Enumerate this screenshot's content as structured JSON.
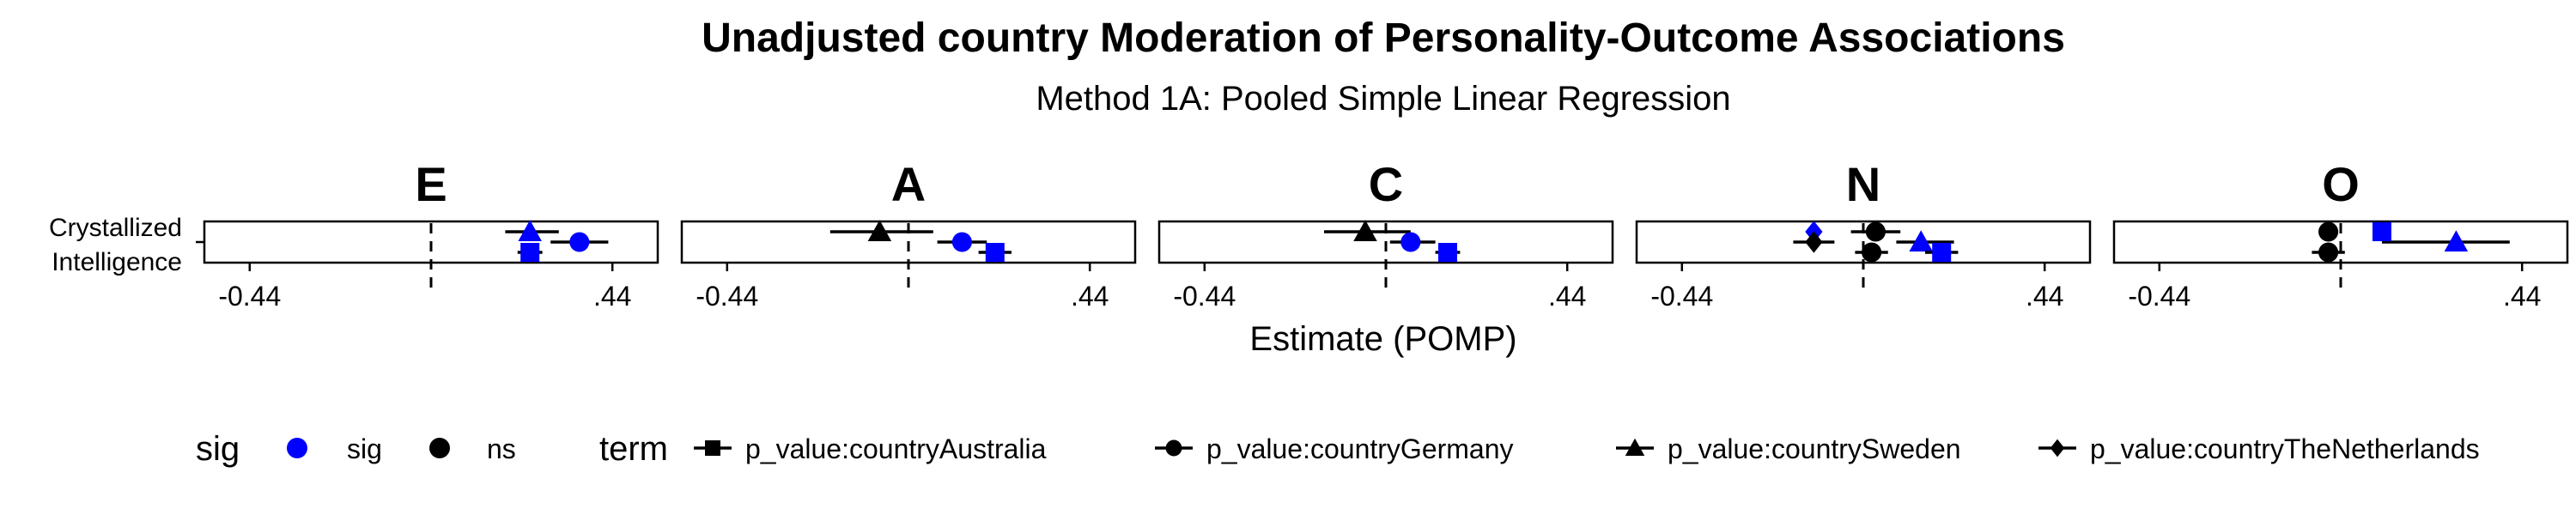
{
  "chart_data": {
    "type": "scatter",
    "subtype": "forest plot (point estimates with confidence-interval error bars), faceted",
    "title": "Unadjusted country Moderation of Personality-Outcome Associations",
    "subtitle": "Method 1A: Pooled Simple Linear Regression",
    "xlabel": "Estimate (POMP)",
    "ylabel": "",
    "x_tick_labels": [
      "-0.44",
      ".44"
    ],
    "x_ticks": [
      -0.44,
      0.44
    ],
    "xlim": [
      -0.55,
      0.55
    ],
    "reference_line_x": 0,
    "reference_line_style": "dashed",
    "y_category": [
      "Crystallized",
      "Intelligence"
    ],
    "grid": false,
    "legend_position": "bottom",
    "colors": {
      "sig": "#0000ff",
      "ns": "#000000"
    },
    "legend": {
      "sig_title": "sig",
      "sig_items": [
        {
          "label": "sig",
          "color": "#0000ff"
        },
        {
          "label": "ns",
          "color": "#000000"
        }
      ],
      "term_title": "term",
      "term_items": [
        {
          "label": "p_value:countryAustralia",
          "shape": "square"
        },
        {
          "label": "p_value:countryGermany",
          "shape": "circle"
        },
        {
          "label": "p_value:countrySweden",
          "shape": "triangle"
        },
        {
          "label": "p_value:countryTheNetherlands",
          "shape": "diamond"
        }
      ]
    },
    "facets": [
      {
        "label": "E",
        "points": [
          {
            "term": "p_value:countrySweden",
            "shape": "triangle",
            "sig": "sig",
            "estimate": 0.24,
            "lo": 0.18,
            "hi": 0.31
          },
          {
            "term": "p_value:countryGermany",
            "shape": "circle",
            "sig": "sig",
            "estimate": 0.36,
            "lo": 0.29,
            "hi": 0.43
          },
          {
            "term": "p_value:countryAustralia",
            "shape": "square",
            "sig": "sig",
            "estimate": 0.24,
            "lo": 0.21,
            "hi": 0.27
          }
        ]
      },
      {
        "label": "A",
        "points": [
          {
            "term": "p_value:countrySweden",
            "shape": "triangle",
            "sig": "ns",
            "estimate": -0.07,
            "lo": -0.19,
            "hi": 0.06
          },
          {
            "term": "p_value:countryGermany",
            "shape": "circle",
            "sig": "sig",
            "estimate": 0.13,
            "lo": 0.07,
            "hi": 0.19
          },
          {
            "term": "p_value:countryAustralia",
            "shape": "square",
            "sig": "sig",
            "estimate": 0.21,
            "lo": 0.17,
            "hi": 0.25
          }
        ]
      },
      {
        "label": "C",
        "points": [
          {
            "term": "p_value:countrySweden",
            "shape": "triangle",
            "sig": "ns",
            "estimate": -0.05,
            "lo": -0.15,
            "hi": 0.06
          },
          {
            "term": "p_value:countryGermany",
            "shape": "circle",
            "sig": "sig",
            "estimate": 0.06,
            "lo": 0.01,
            "hi": 0.12
          },
          {
            "term": "p_value:countryAustralia",
            "shape": "square",
            "sig": "sig",
            "estimate": 0.15,
            "lo": 0.12,
            "hi": 0.18
          }
        ]
      },
      {
        "label": "N",
        "points": [
          {
            "term": "p_value:countryTheNetherlands",
            "shape": "diamond",
            "sig": "sig",
            "estimate": -0.12,
            "lo": -0.13,
            "hi": -0.11
          },
          {
            "term": "p_value:countryTheNetherlands",
            "shape": "diamond",
            "sig": "ns",
            "estimate": -0.12,
            "lo": -0.17,
            "hi": -0.07
          },
          {
            "term": "p_value:countryGermany",
            "shape": "circle",
            "sig": "ns",
            "estimate": 0.02,
            "lo": -0.02,
            "hi": 0.06
          },
          {
            "term": "p_value:countryGermany",
            "shape": "circle",
            "sig": "ns",
            "estimate": 0.03,
            "lo": -0.03,
            "hi": 0.09
          },
          {
            "term": "p_value:countrySweden",
            "shape": "triangle",
            "sig": "sig",
            "estimate": 0.14,
            "lo": 0.08,
            "hi": 0.22
          },
          {
            "term": "p_value:countryAustralia",
            "shape": "square",
            "sig": "sig",
            "estimate": 0.19,
            "lo": 0.15,
            "hi": 0.23
          }
        ]
      },
      {
        "label": "O",
        "points": [
          {
            "term": "p_value:countryGermany",
            "shape": "circle",
            "sig": "ns",
            "estimate": -0.03,
            "lo": -0.03,
            "hi": -0.03
          },
          {
            "term": "p_value:countrySweden",
            "shape": "triangle",
            "sig": "sig",
            "estimate": 0.28,
            "lo": 0.1,
            "hi": 0.41
          },
          {
            "term": "p_value:countryGermany",
            "shape": "circle",
            "sig": "ns",
            "estimate": -0.03,
            "lo": -0.07,
            "hi": 0.01
          },
          {
            "term": "p_value:countryAustralia",
            "shape": "square",
            "sig": "sig",
            "estimate": 0.1,
            "lo": 0.08,
            "hi": 0.12
          }
        ]
      }
    ]
  }
}
